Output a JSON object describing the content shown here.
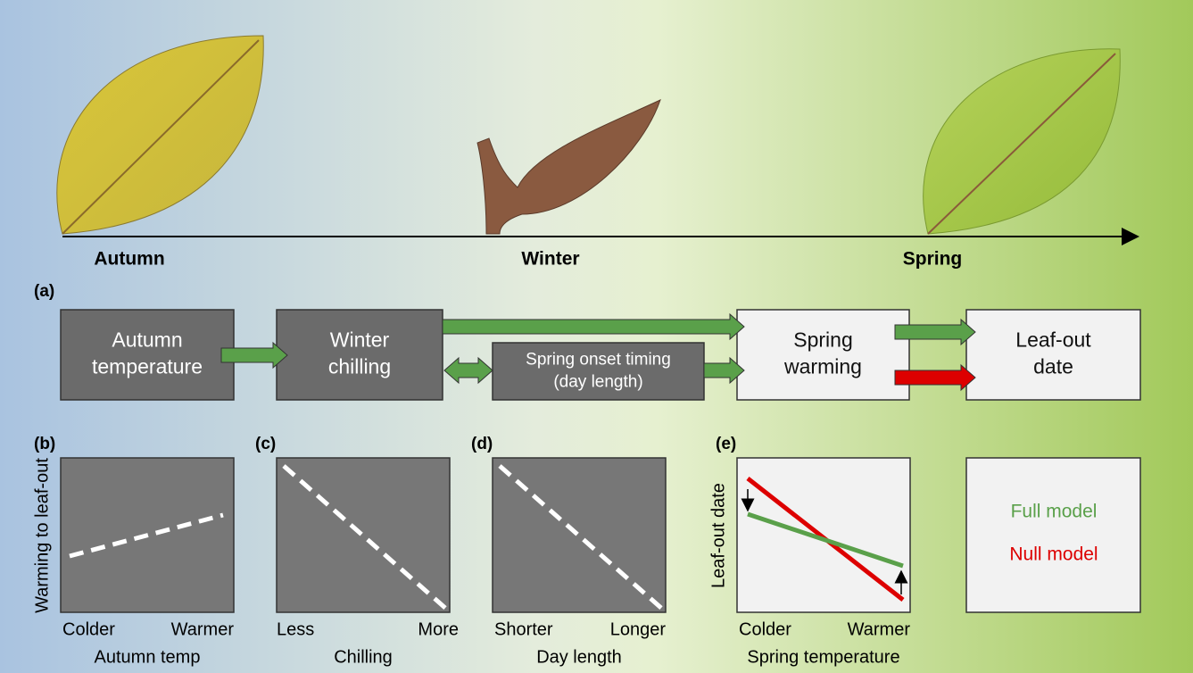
{
  "timeline": {
    "seasons": [
      "Autumn",
      "Winter",
      "Spring"
    ]
  },
  "panel_a": {
    "label": "(a)",
    "boxes": [
      {
        "lines": [
          "Autumn",
          "temperature"
        ]
      },
      {
        "lines": [
          "Winter",
          "chilling"
        ]
      },
      {
        "lines": [
          "Spring onset timing",
          "(day length)"
        ]
      },
      {
        "lines": [
          "Spring",
          "warming"
        ]
      },
      {
        "lines": [
          "Leaf-out",
          "date"
        ]
      }
    ]
  },
  "panels": [
    {
      "label": "(b)",
      "y_label": "Warming to leaf-out",
      "x_ticks": [
        "Colder",
        "Warmer"
      ],
      "x_label": "Autumn temp"
    },
    {
      "label": "(c)",
      "x_ticks": [
        "Less",
        "More"
      ],
      "x_label": "Chilling"
    },
    {
      "label": "(d)",
      "x_ticks": [
        "Shorter",
        "Longer"
      ],
      "x_label": "Day length"
    },
    {
      "label": "(e)",
      "y_label": "Leaf-out date",
      "x_ticks": [
        "Colder",
        "Warmer"
      ],
      "x_label": "Spring temperature"
    }
  ],
  "legend": {
    "items": [
      "Full model",
      "Null model"
    ]
  }
}
